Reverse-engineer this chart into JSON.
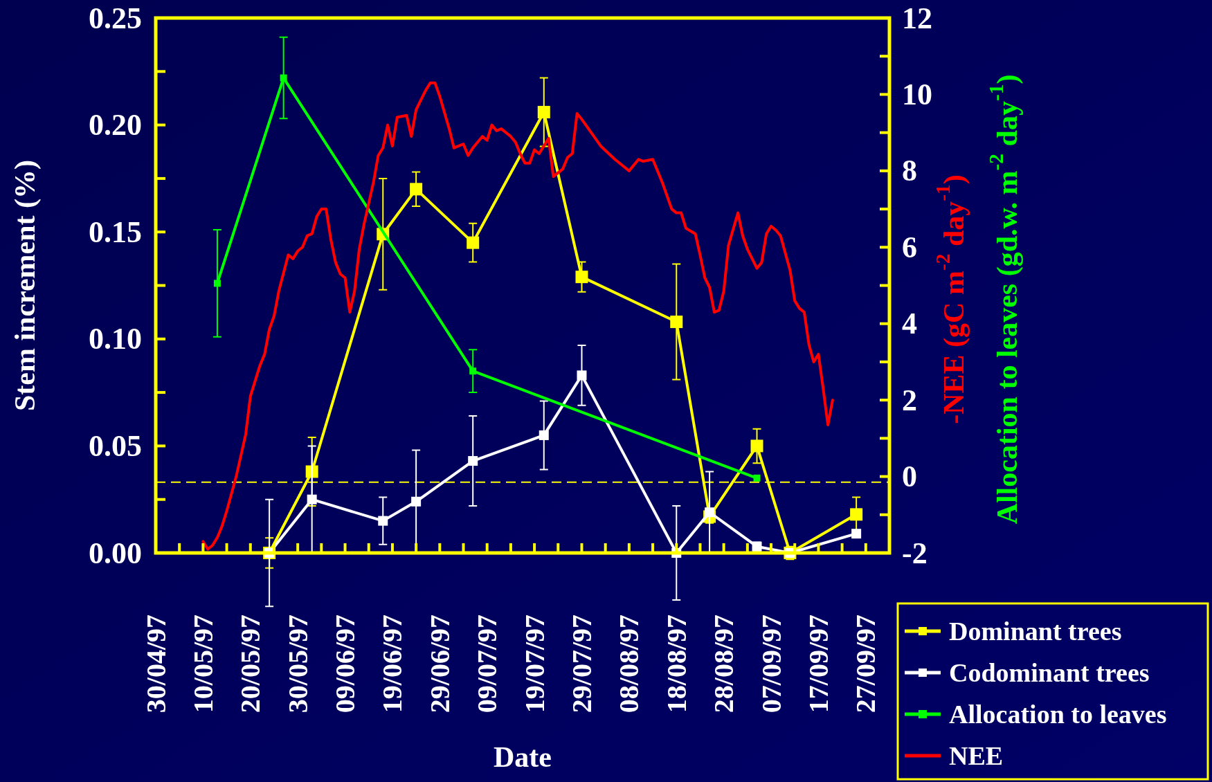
{
  "chart_data": {
    "type": "line",
    "xlabel": "Date",
    "ylabel": "Stem increment (%)",
    "y2label": "-NEE (gC m$^{-2}$ day$^{-1}$)",
    "annotations": [
      "Allocation to leaves (gd.w. m$^{-2}$ day$^{-1}$)"
    ],
    "xlim": [
      "1997-04-30",
      "1997-10-02"
    ],
    "xticks": [
      {
        "value": "1997-04-30",
        "label": "30/04/97"
      },
      {
        "value": "1997-05-05",
        "label": null
      },
      {
        "value": "1997-05-10",
        "label": "10/05/97"
      },
      {
        "value": "1997-05-15",
        "label": null
      },
      {
        "value": "1997-05-20",
        "label": "20/05/97"
      },
      {
        "value": "1997-05-25",
        "label": null
      },
      {
        "value": "1997-05-30",
        "label": "30/05/97"
      },
      {
        "value": "1997-06-04",
        "label": null
      },
      {
        "value": "1997-06-09",
        "label": "09/06/97"
      },
      {
        "value": "1997-06-14",
        "label": null
      },
      {
        "value": "1997-06-19",
        "label": "19/06/97"
      },
      {
        "value": "1997-06-24",
        "label": null
      },
      {
        "value": "1997-06-29",
        "label": "29/06/97"
      },
      {
        "value": "1997-07-04",
        "label": null
      },
      {
        "value": "1997-07-09",
        "label": "09/07/97"
      },
      {
        "value": "1997-07-14",
        "label": null
      },
      {
        "value": "1997-07-19",
        "label": "19/07/97"
      },
      {
        "value": "1997-07-24",
        "label": null
      },
      {
        "value": "1997-07-29",
        "label": "29/07/97"
      },
      {
        "value": "1997-08-03",
        "label": null
      },
      {
        "value": "1997-08-08",
        "label": "08/08/97"
      },
      {
        "value": "1997-08-13",
        "label": null
      },
      {
        "value": "1997-08-18",
        "label": "18/08/97"
      },
      {
        "value": "1997-08-23",
        "label": null
      },
      {
        "value": "1997-08-28",
        "label": "28/08/97"
      },
      {
        "value": "1997-09-02",
        "label": null
      },
      {
        "value": "1997-09-07",
        "label": "07/09/97"
      },
      {
        "value": "1997-09-12",
        "label": null
      },
      {
        "value": "1997-09-17",
        "label": "17/09/97"
      },
      {
        "value": "1997-09-22",
        "label": null
      },
      {
        "value": "1997-09-27",
        "label": "27/09/97"
      }
    ],
    "ylim": [
      0,
      0.25
    ],
    "yticks": [
      {
        "value": 0,
        "label": "0.00"
      },
      {
        "value": 0.025,
        "label": null
      },
      {
        "value": 0.05,
        "label": "0.05"
      },
      {
        "value": 0.075,
        "label": null
      },
      {
        "value": 0.1,
        "label": "0.10"
      },
      {
        "value": 0.125,
        "label": null
      },
      {
        "value": 0.15,
        "label": "0.15"
      },
      {
        "value": 0.175,
        "label": null
      },
      {
        "value": 0.2,
        "label": "0.20"
      },
      {
        "value": 0.225,
        "label": null
      },
      {
        "value": 0.25,
        "label": "0.25"
      }
    ],
    "y2lim": [
      -2,
      12
    ],
    "y2ticks": [
      -2,
      {
        "value": -1,
        "label": null
      },
      0,
      {
        "value": 1,
        "label": null
      },
      2,
      {
        "value": 3,
        "label": null
      },
      4,
      {
        "value": 5,
        "label": null
      },
      6,
      {
        "value": 7,
        "label": null
      },
      8,
      {
        "value": 9,
        "label": null
      },
      10,
      {
        "value": 11,
        "label": null
      },
      12
    ],
    "ref_lines": [
      {
        "axis": "y2",
        "value": -0.15,
        "label": null,
        "color": "#ffff00",
        "line_style": "dashed"
      }
    ],
    "marker": "square",
    "legend": "bottom right",
    "grid": false,
    "series": [
      {
        "name": "Dominant trees",
        "color": "#ffff00",
        "x": [
          "1997-05-24",
          "1997-06-02",
          "1997-06-17",
          "1997-06-24",
          "1997-07-06",
          "1997-07-21",
          "1997-07-29",
          "1997-08-18",
          "1997-08-25",
          "1997-09-04",
          "1997-09-11",
          "1997-09-25"
        ],
        "values": [
          0.0,
          0.038,
          0.149,
          0.17,
          0.145,
          0.206,
          0.129,
          0.108,
          0.017,
          0.05,
          0.0,
          0.018
        ],
        "errors": [
          0.007,
          0.016,
          0.026,
          0.008,
          0.009,
          0.016,
          0.007,
          0.027,
          0.003,
          0.008,
          0.003,
          0.008
        ]
      },
      {
        "name": "Codominant trees",
        "color": "#ffffff",
        "x": [
          "1997-05-24",
          "1997-06-02",
          "1997-06-17",
          "1997-06-24",
          "1997-07-06",
          "1997-07-21",
          "1997-07-29",
          "1997-08-18",
          "1997-08-25",
          "1997-09-04",
          "1997-09-11",
          "1997-09-25"
        ],
        "values": [
          0.0,
          0.025,
          0.015,
          0.024,
          0.043,
          0.055,
          0.083,
          0.0,
          0.019,
          0.003,
          0.0,
          0.009
        ],
        "errors": [
          0.025,
          0.025,
          0.011,
          0.024,
          0.021,
          0.016,
          0.014,
          0.022,
          0.019,
          0.002,
          null,
          null
        ]
      },
      {
        "name": "Allocation to leaves",
        "color": "#00ff00",
        "x": [
          "1997-05-13",
          "1997-05-27",
          "1997-07-06",
          "1997-09-04"
        ],
        "values": [
          0.126,
          0.222,
          0.085,
          0.035
        ],
        "errors": [
          0.025,
          0.019,
          0.01,
          null
        ]
      },
      {
        "name": "NEE",
        "color": "#ff0000",
        "axis": "y2",
        "marker": "none",
        "x": [
          "1997-05-10",
          "1997-05-11",
          "1997-05-12",
          "1997-05-13",
          "1997-05-14",
          "1997-05-15",
          "1997-05-17",
          "1997-05-19",
          "1997-05-20",
          "1997-05-22",
          "1997-05-23",
          "1997-05-24",
          "1997-05-25",
          "1997-05-26",
          "1997-05-28",
          "1997-05-29",
          "1997-05-30",
          "1997-05-31",
          "1997-06-01",
          "1997-06-02",
          "1997-06-03",
          "1997-06-04",
          "1997-06-05",
          "1997-06-06",
          "1997-06-07",
          "1997-06-08",
          "1997-06-09",
          "1997-06-10",
          "1997-06-11",
          "1997-06-12",
          "1997-06-13",
          "1997-06-15",
          "1997-06-16",
          "1997-06-17",
          "1997-06-18",
          "1997-06-19",
          "1997-06-20",
          "1997-06-22",
          "1997-06-23",
          "1997-06-24",
          "1997-06-26",
          "1997-06-27",
          "1997-06-28",
          "1997-06-29",
          "1997-07-01",
          "1997-07-02",
          "1997-07-04",
          "1997-07-05",
          "1997-07-06",
          "1997-07-08",
          "1997-07-09",
          "1997-07-10",
          "1997-07-11",
          "1997-07-12",
          "1997-07-14",
          "1997-07-15",
          "1997-07-16",
          "1997-07-17",
          "1997-07-18",
          "1997-07-19",
          "1997-07-20",
          "1997-07-22",
          "1997-07-23",
          "1997-07-25",
          "1997-07-26",
          "1997-07-27",
          "1997-07-28",
          "1997-07-29",
          "1997-07-31",
          "1997-08-02",
          "1997-08-05",
          "1997-08-06",
          "1997-08-08",
          "1997-08-10",
          "1997-08-11",
          "1997-08-13",
          "1997-08-15",
          "1997-08-17",
          "1997-08-18",
          "1997-08-19",
          "1997-08-20",
          "1997-08-22",
          "1997-08-23",
          "1997-08-24",
          "1997-08-25",
          "1997-08-26",
          "1997-08-27",
          "1997-08-28",
          "1997-08-29",
          "1997-08-31",
          "1997-09-01",
          "1997-09-02",
          "1997-09-04",
          "1997-09-05",
          "1997-09-06",
          "1997-09-07",
          "1997-09-08",
          "1997-09-09",
          "1997-09-11",
          "1997-09-12",
          "1997-09-13",
          "1997-09-14",
          "1997-09-15",
          "1997-09-16",
          "1997-09-17",
          "1997-09-18",
          "1997-09-19",
          "1997-09-20"
        ],
        "values": [
          -1.7,
          -1.9,
          -1.8,
          -1.6,
          -1.3,
          -0.9,
          0.0,
          1.1,
          2.1,
          2.9,
          3.2,
          3.85,
          4.2,
          4.85,
          5.8,
          5.7,
          5.9,
          6.0,
          6.3,
          6.35,
          6.8,
          7.0,
          7.0,
          6.2,
          5.6,
          5.3,
          5.2,
          4.3,
          4.85,
          5.95,
          6.6,
          7.7,
          8.4,
          8.6,
          9.2,
          8.65,
          9.4,
          9.45,
          8.9,
          9.6,
          10.1,
          10.3,
          10.3,
          9.95,
          9.1,
          8.6,
          8.7,
          8.4,
          8.6,
          8.9,
          8.8,
          9.2,
          9.05,
          9.1,
          8.9,
          8.75,
          8.45,
          8.2,
          8.2,
          8.55,
          8.45,
          8.85,
          7.85,
          8.05,
          8.35,
          8.45,
          9.5,
          9.35,
          9.0,
          8.65,
          8.3,
          8.2,
          8.0,
          8.3,
          8.25,
          8.3,
          7.7,
          7.0,
          6.9,
          6.9,
          6.5,
          6.35,
          5.8,
          5.2,
          4.95,
          4.3,
          4.35,
          4.85,
          6.05,
          6.9,
          6.3,
          5.95,
          5.45,
          5.6,
          6.35,
          6.55,
          6.45,
          6.3,
          5.4,
          4.6,
          4.4,
          4.3,
          3.45,
          3.0,
          3.2,
          2.3,
          1.35,
          2.0
        ]
      }
    ]
  }
}
